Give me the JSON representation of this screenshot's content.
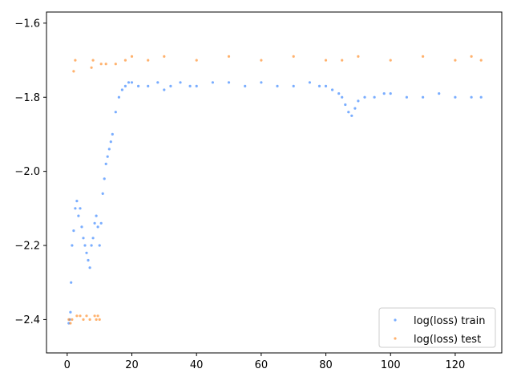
{
  "chart_data": {
    "type": "scatter",
    "title": "",
    "xlabel": "",
    "ylabel": "",
    "xlim": [
      -6.4,
      134.4
    ],
    "ylim": [
      -2.49,
      -1.57
    ],
    "xticks": [
      0,
      20,
      40,
      60,
      80,
      100,
      120
    ],
    "yticks": [
      -2.4,
      -2.2,
      -2.0,
      -1.8,
      -1.6
    ],
    "xtick_labels": [
      "0",
      "20",
      "40",
      "60",
      "80",
      "100",
      "120"
    ],
    "ytick_labels": [
      "−2.4",
      "−2.2",
      "−2.0",
      "−1.8",
      "−1.6"
    ],
    "grid": false,
    "legend_position": "lower-right",
    "series": [
      {
        "name": "log(loss) train",
        "color": "#1f77ff",
        "marker": "point",
        "x": [
          0.5,
          0.8,
          1,
          1.2,
          1.5,
          2,
          2.5,
          3,
          3.5,
          4,
          4.5,
          5,
          5.5,
          6,
          6.5,
          7,
          7.5,
          8,
          8.5,
          9,
          9.5,
          10,
          10.5,
          11,
          11.5,
          12,
          12.5,
          13,
          13.5,
          14,
          15,
          16,
          17,
          18,
          19,
          20,
          22,
          25,
          28,
          30,
          32,
          35,
          38,
          40,
          45,
          50,
          55,
          60,
          65,
          70,
          75,
          78,
          80,
          82,
          84,
          85,
          86,
          87,
          88,
          89,
          90,
          92,
          95,
          98,
          100,
          105,
          110,
          115,
          120,
          125,
          128
        ],
        "y": [
          -2.41,
          -2.4,
          -2.38,
          -2.3,
          -2.2,
          -2.16,
          -2.1,
          -2.08,
          -2.12,
          -2.1,
          -2.15,
          -2.18,
          -2.2,
          -2.22,
          -2.24,
          -2.26,
          -2.2,
          -2.18,
          -2.14,
          -2.12,
          -2.15,
          -2.2,
          -2.14,
          -2.06,
          -2.02,
          -1.98,
          -1.96,
          -1.94,
          -1.92,
          -1.9,
          -1.84,
          -1.8,
          -1.78,
          -1.77,
          -1.76,
          -1.76,
          -1.77,
          -1.77,
          -1.76,
          -1.78,
          -1.77,
          -1.76,
          -1.77,
          -1.77,
          -1.76,
          -1.76,
          -1.77,
          -1.76,
          -1.77,
          -1.77,
          -1.76,
          -1.77,
          -1.77,
          -1.78,
          -1.79,
          -1.8,
          -1.82,
          -1.84,
          -1.85,
          -1.83,
          -1.81,
          -1.8,
          -1.8,
          -1.79,
          -1.79,
          -1.8,
          -1.8,
          -1.79,
          -1.8,
          -1.8,
          -1.8
        ]
      },
      {
        "name": "log(loss) test",
        "color": "#ff7f0e",
        "marker": "point",
        "x": [
          0.5,
          1,
          1.5,
          2,
          2.5,
          3,
          4,
          5,
          6,
          7,
          7.5,
          8,
          8.5,
          9,
          9.5,
          10,
          10.5,
          12,
          15,
          18,
          20,
          25,
          30,
          40,
          50,
          60,
          70,
          80,
          85,
          90,
          100,
          110,
          120,
          125,
          128
        ],
        "y": [
          -2.4,
          -2.41,
          -2.4,
          -1.73,
          -1.7,
          -2.39,
          -2.39,
          -2.4,
          -2.39,
          -2.4,
          -1.72,
          -1.7,
          -2.39,
          -2.4,
          -2.39,
          -2.4,
          -1.71,
          -1.71,
          -1.71,
          -1.7,
          -1.69,
          -1.7,
          -1.69,
          -1.7,
          -1.69,
          -1.7,
          -1.69,
          -1.7,
          -1.7,
          -1.69,
          -1.7,
          -1.69,
          -1.7,
          -1.69,
          -1.7
        ]
      }
    ]
  }
}
